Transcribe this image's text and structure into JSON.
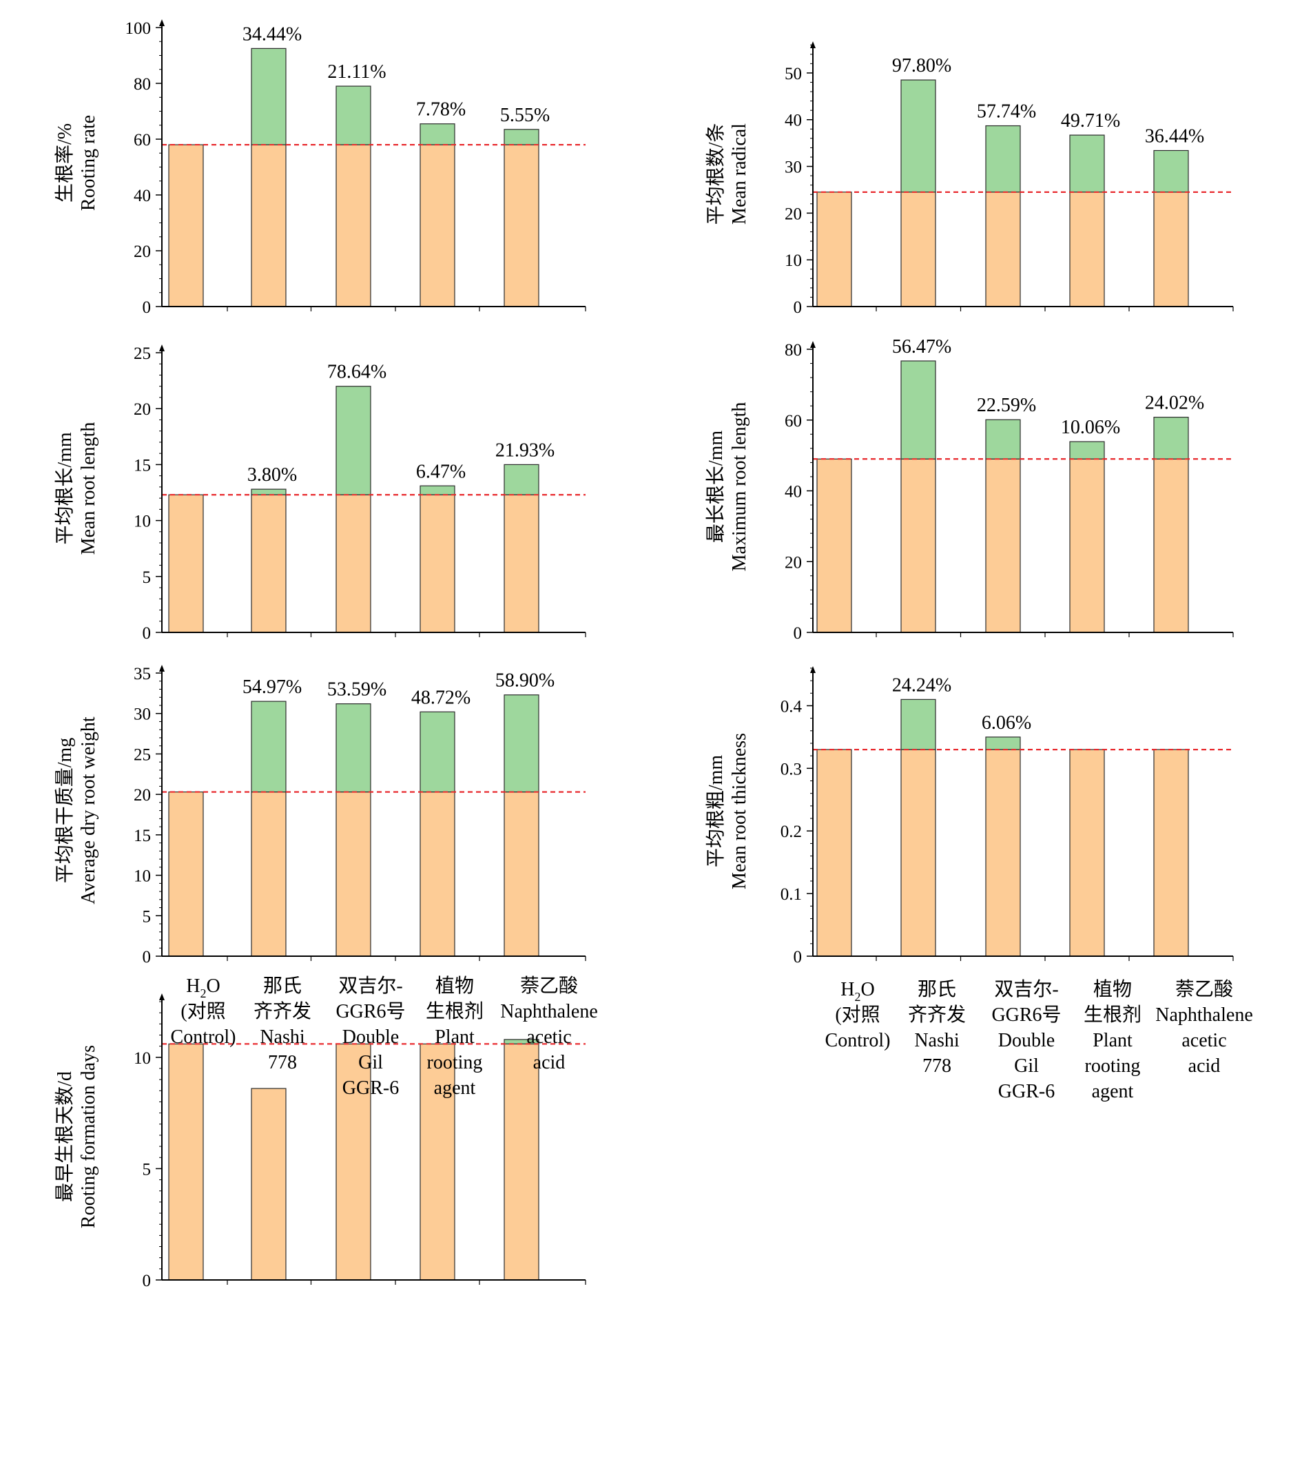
{
  "colors": {
    "base": "#FDCC96",
    "increase": "#9ED79D",
    "baseline": "#E8262A",
    "axis": "#000000",
    "bar_edge": "#2b2b2b"
  },
  "categories": [
    {
      "lines": [
        "H2O",
        "(对照",
        "Control)"
      ],
      "sub_line": 0
    },
    {
      "lines": [
        "那氏",
        "齐齐发",
        "Nashi",
        "778"
      ]
    },
    {
      "lines": [
        "双吉尔-",
        "GGR6号",
        "Double",
        "Gil",
        "GGR-6"
      ]
    },
    {
      "lines": [
        "植物",
        "生根剂",
        "Plant",
        "rooting",
        "agent"
      ]
    },
    {
      "lines": [
        "萘乙酸",
        "Naphthalene",
        "acetic",
        "acid"
      ]
    }
  ],
  "chart_data": [
    {
      "id": "rooting-rate",
      "type": "bar",
      "stacked": true,
      "ylabel_cn": "生根率/%",
      "ylabel_en": "Rooting rate",
      "ylim": [
        0,
        100
      ],
      "ticks": [
        0,
        20,
        40,
        60,
        80,
        100
      ],
      "tick_labels": [
        "0",
        "20",
        "40",
        "60",
        "80",
        "100"
      ],
      "minor_step": 5,
      "baseline": 58,
      "totals": [
        58,
        92.5,
        79,
        65.5,
        63.5
      ],
      "increase_labels": [
        "",
        "34.44%",
        "21.11%",
        "7.78%",
        "5.55%"
      ]
    },
    {
      "id": "mean-radical",
      "type": "bar",
      "stacked": true,
      "ylabel_cn": "平均根数/条",
      "ylabel_en": "Mean radical",
      "ylim": [
        0,
        55
      ],
      "ticks": [
        0,
        10,
        20,
        30,
        40,
        50
      ],
      "tick_labels": [
        "0",
        "10",
        "20",
        "30",
        "40",
        "50"
      ],
      "minor_step": 2,
      "baseline": 24.5,
      "totals": [
        24.5,
        48.5,
        38.7,
        36.7,
        33.4
      ],
      "increase_labels": [
        "",
        "97.80%",
        "57.74%",
        "49.71%",
        "36.44%"
      ]
    },
    {
      "id": "mean-root-length",
      "type": "bar",
      "stacked": true,
      "ylabel_cn": "平均根长/mm",
      "ylabel_en": "Mean root length",
      "ylim": [
        0,
        25
      ],
      "ticks": [
        0,
        5,
        10,
        15,
        20,
        25
      ],
      "tick_labels": [
        "0",
        "5",
        "10",
        "15",
        "20",
        "25"
      ],
      "minor_step": 1,
      "baseline": 12.3,
      "totals": [
        12.3,
        12.8,
        22.0,
        13.1,
        15.0
      ],
      "increase_labels": [
        "",
        "3.80%",
        "78.64%",
        "6.47%",
        "21.93%"
      ]
    },
    {
      "id": "maximum-root-length",
      "type": "bar",
      "stacked": true,
      "ylabel_cn": "最长根长/mm",
      "ylabel_en": "Maximum root length",
      "ylim": [
        0,
        80
      ],
      "ticks": [
        0,
        20,
        40,
        60,
        80
      ],
      "tick_labels": [
        "0",
        "20",
        "40",
        "60",
        "80"
      ],
      "minor_step": 4,
      "baseline": 49,
      "totals": [
        49,
        76.7,
        60.1,
        53.9,
        60.8
      ],
      "increase_labels": [
        "",
        "56.47%",
        "22.59%",
        "10.06%",
        "24.02%"
      ]
    },
    {
      "id": "average-dry-root-weight",
      "type": "bar",
      "stacked": true,
      "ylabel_cn": "平均根干质量/mg",
      "ylabel_en": "Average dry root weight",
      "ylim": [
        0,
        35
      ],
      "ticks": [
        0,
        5,
        10,
        15,
        20,
        25,
        30,
        35
      ],
      "tick_labels": [
        "0",
        "5",
        "10",
        "15",
        "20",
        "25",
        "30",
        "35"
      ],
      "minor_step": 1,
      "baseline": 20.3,
      "totals": [
        20.3,
        31.5,
        31.2,
        30.2,
        32.3
      ],
      "increase_labels": [
        "",
        "54.97%",
        "53.59%",
        "48.72%",
        "58.90%"
      ]
    },
    {
      "id": "mean-root-thickness",
      "type": "bar",
      "stacked": true,
      "ylabel_cn": "平均根粗/mm",
      "ylabel_en": "Mean root thickness",
      "ylim": [
        0,
        0.45
      ],
      "ticks": [
        0,
        0.1,
        0.2,
        0.3,
        0.4
      ],
      "tick_labels": [
        "0",
        "0.1",
        "0.2",
        "0.3",
        "0.4"
      ],
      "minor_step": 0.02,
      "baseline": 0.33,
      "totals": [
        0.33,
        0.41,
        0.35,
        0.33,
        0.33
      ],
      "increase_labels": [
        "",
        "24.24%",
        "6.06%",
        "",
        ""
      ]
    },
    {
      "id": "rooting-formation-days",
      "type": "bar",
      "stacked": true,
      "ylabel_cn": "最早生根天数/d",
      "ylabel_en": "Rooting formation days",
      "ylim": [
        0,
        12.5
      ],
      "ticks": [
        0,
        5,
        10
      ],
      "tick_labels": [
        "0",
        "5",
        "10"
      ],
      "minor_step": 0.5,
      "baseline": 10.6,
      "totals": [
        10.6,
        8.6,
        10.6,
        10.6,
        10.8
      ],
      "increase_labels": [
        "",
        "",
        "",
        "",
        ""
      ]
    }
  ]
}
